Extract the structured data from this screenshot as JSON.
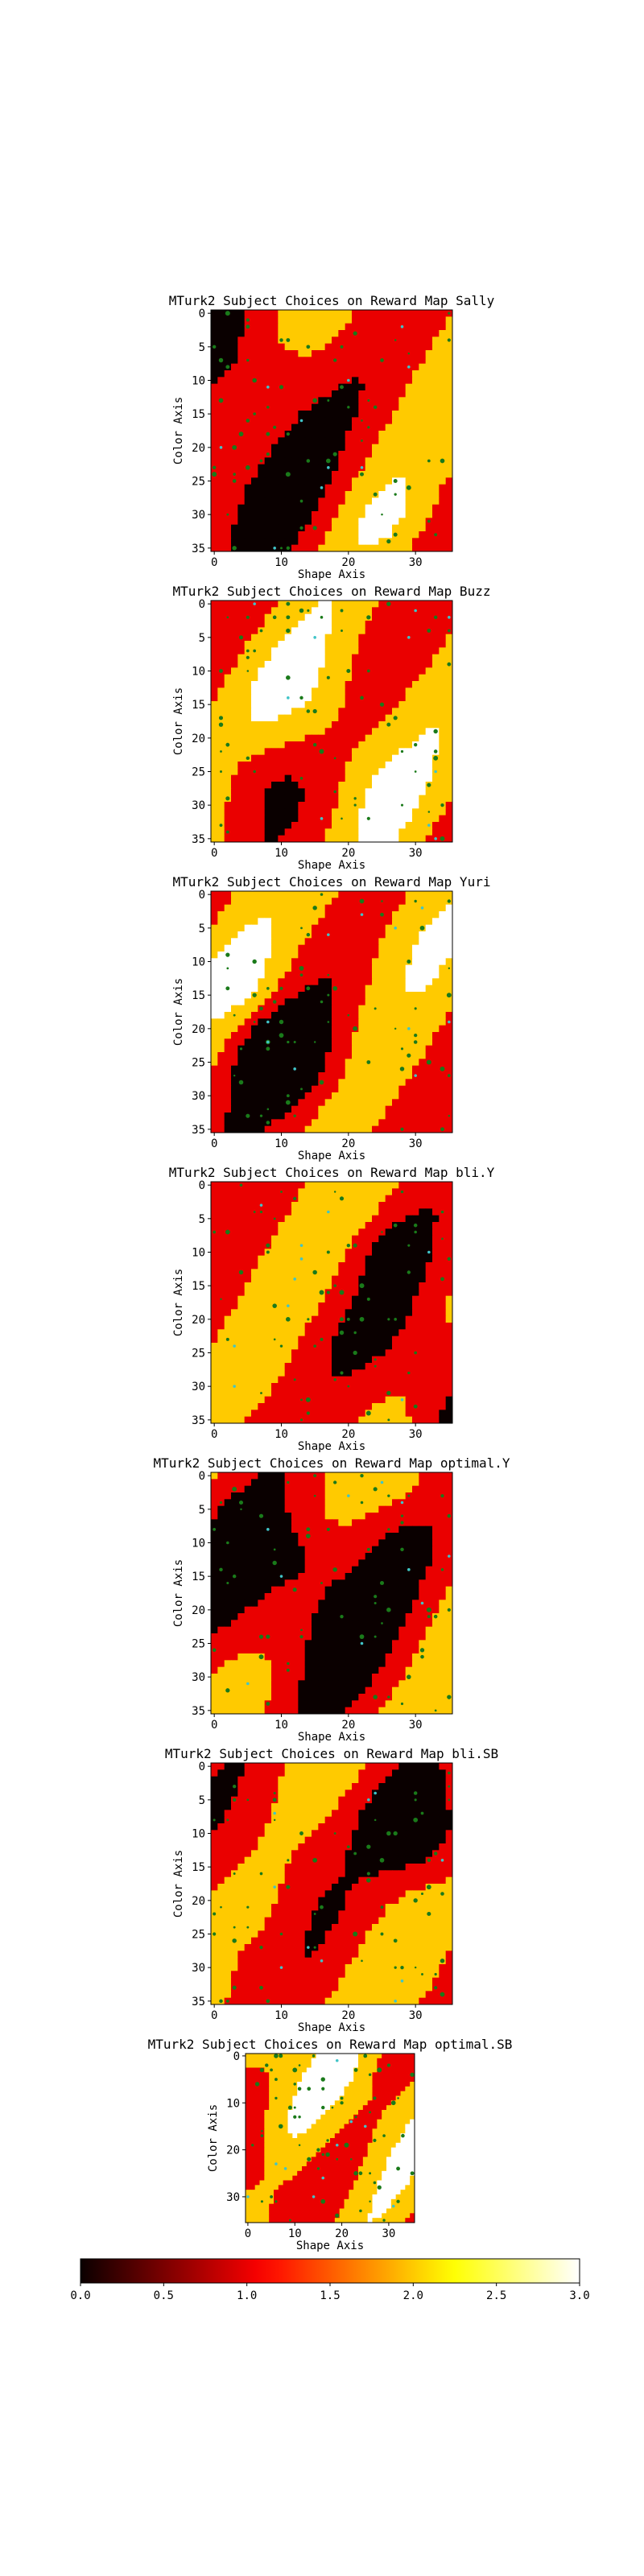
{
  "figure": {
    "colorbar": {
      "min": 0.0,
      "max": 3.0,
      "ticks": [
        "0.0",
        "0.5",
        "1.0",
        "1.5",
        "2.0",
        "2.5",
        "3.0"
      ],
      "colormap": "hot",
      "orientation": "horizontal",
      "position": "bottom"
    },
    "marker_colors": {
      "subject_choice": "#1a7a1a",
      "alt_choice": "#40c4c8"
    }
  },
  "chart_data": [
    {
      "type": "heatmap",
      "title": "MTurk2 Subject Choices on Reward Map Sally",
      "xlabel": "Shape Axis",
      "ylabel": "Color Axis",
      "xticks": [
        0,
        10,
        20,
        30
      ],
      "yticks": [
        0,
        5,
        10,
        15,
        20,
        25,
        30,
        35
      ],
      "xlim": [
        0,
        35
      ],
      "ylim": [
        35,
        0
      ],
      "grid_size": 36,
      "levels": [
        0.0,
        1.0,
        2.0,
        3.0
      ],
      "seed": 11
    },
    {
      "type": "heatmap",
      "title": "MTurk2 Subject Choices on Reward Map Buzz",
      "xlabel": "Shape Axis",
      "ylabel": "Color Axis",
      "xticks": [
        0,
        10,
        20,
        30
      ],
      "yticks": [
        0,
        5,
        10,
        15,
        20,
        25,
        30,
        35
      ],
      "xlim": [
        0,
        35
      ],
      "ylim": [
        35,
        0
      ],
      "grid_size": 36,
      "levels": [
        0.0,
        1.0,
        2.0,
        3.0
      ],
      "seed": 23
    },
    {
      "type": "heatmap",
      "title": "MTurk2 Subject Choices on Reward Map Yuri",
      "xlabel": "Shape Axis",
      "ylabel": "Color Axis",
      "xticks": [
        0,
        10,
        20,
        30
      ],
      "yticks": [
        0,
        5,
        10,
        15,
        20,
        25,
        30,
        35
      ],
      "xlim": [
        0,
        35
      ],
      "ylim": [
        35,
        0
      ],
      "grid_size": 36,
      "levels": [
        0.0,
        1.0,
        2.0,
        3.0
      ],
      "seed": 37
    },
    {
      "type": "heatmap",
      "title": "MTurk2 Subject Choices on Reward Map bli.Y",
      "xlabel": "Shape Axis",
      "ylabel": "Color Axis",
      "xticks": [
        0,
        10,
        20,
        30
      ],
      "yticks": [
        0,
        5,
        10,
        15,
        20,
        25,
        30,
        35
      ],
      "xlim": [
        0,
        35
      ],
      "ylim": [
        35,
        0
      ],
      "grid_size": 36,
      "levels": [
        0.0,
        1.0,
        2.0,
        3.0
      ],
      "seed": 41
    },
    {
      "type": "heatmap",
      "title": "MTurk2 Subject Choices on Reward Map optimal.Y",
      "xlabel": "Shape Axis",
      "ylabel": "Color Axis",
      "xticks": [
        0,
        10,
        20,
        30
      ],
      "yticks": [
        0,
        5,
        10,
        15,
        20,
        25,
        30,
        35
      ],
      "xlim": [
        0,
        35
      ],
      "ylim": [
        35,
        0
      ],
      "grid_size": 36,
      "levels": [
        0.0,
        1.0,
        2.0,
        3.0
      ],
      "seed": 53
    },
    {
      "type": "heatmap",
      "title": "MTurk2 Subject Choices on Reward Map bli.SB",
      "xlabel": "Shape Axis",
      "ylabel": "Color Axis",
      "xticks": [
        0,
        10,
        20,
        30
      ],
      "yticks": [
        0,
        5,
        10,
        15,
        20,
        25,
        30,
        35
      ],
      "xlim": [
        0,
        35
      ],
      "ylim": [
        35,
        0
      ],
      "grid_size": 36,
      "levels": [
        0.0,
        1.0,
        2.0,
        3.0
      ],
      "seed": 67
    },
    {
      "type": "heatmap",
      "title": "MTurk2 Subject Choices on Reward Map optimal.SB",
      "xlabel": "Shape Axis",
      "ylabel": "Color Axis",
      "xticks": [
        0,
        10,
        20,
        30
      ],
      "yticks": [
        0,
        10,
        20,
        30
      ],
      "xlim": [
        0,
        35
      ],
      "ylim": [
        35,
        0
      ],
      "grid_size": 36,
      "levels": [
        0.0,
        1.0,
        2.0,
        3.0
      ],
      "seed": 79
    }
  ]
}
